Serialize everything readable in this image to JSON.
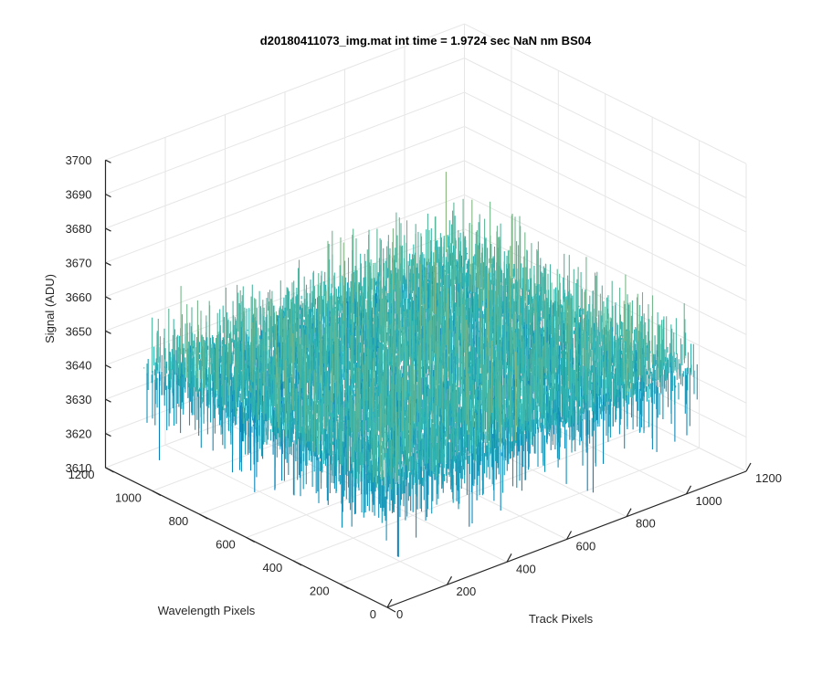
{
  "chart_data": {
    "type": "surface",
    "title": "d20180411073_img.mat int time = 1.9724 sec  NaN nm BS04",
    "xlabel": "Track Pixels",
    "ylabel": "Wavelength Pixels",
    "zlabel": "Signal (ADU)",
    "xlim": [
      0,
      1200
    ],
    "ylim": [
      0,
      1200
    ],
    "zlim": [
      3610,
      3700
    ],
    "xticks": [
      "0",
      "200",
      "400",
      "600",
      "800",
      "1000",
      "1200"
    ],
    "yticks": [
      "0",
      "200",
      "400",
      "600",
      "800",
      "1000",
      "1200"
    ],
    "zticks": [
      "3610",
      "3620",
      "3630",
      "3640",
      "3650",
      "3660",
      "3670",
      "3680",
      "3690",
      "3700"
    ],
    "grid": true,
    "colormap": "parula",
    "data_extent": {
      "x": [
        0,
        1024
      ],
      "y": [
        0,
        1024
      ]
    },
    "signal_stats": {
      "mean": 3645,
      "min_approx": 3612,
      "max_approx": 3690
    },
    "colors": {
      "low": "#0072bd",
      "mid": "#2bb5b3",
      "high": "#e7b94a"
    }
  }
}
